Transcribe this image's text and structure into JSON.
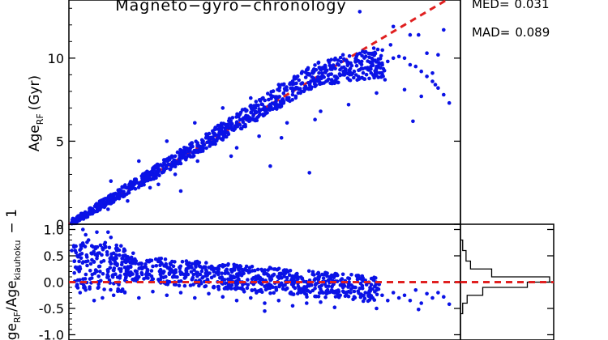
{
  "chart_data": [
    {
      "type": "scatter",
      "panel": "main",
      "title": "Magneto−gyro−chronology",
      "ylabel": "Age",
      "ylabel_sub": "RF",
      "ylabel_unit": "(Gyr)",
      "xlim": [
        0,
        14
      ],
      "ylim": [
        0,
        13.5
      ],
      "yticks": [
        0,
        5,
        10
      ],
      "yticklabels": [
        "0",
        "5",
        "10"
      ],
      "point_color": "#0a12e6",
      "reference_line": {
        "style": "dashed",
        "color": "#e02020",
        "slope": 1,
        "intercept": 0
      },
      "series": [
        {
          "points": [
            [
              0.2,
              0.3
            ],
            [
              0.4,
              0.5
            ],
            [
              0.6,
              0.7
            ],
            [
              0.8,
              0.9
            ],
            [
              1.0,
              1.0
            ],
            [
              1.2,
              1.4
            ],
            [
              1.4,
              1.6
            ],
            [
              1.6,
              1.8
            ],
            [
              1.8,
              2.0
            ],
            [
              2.0,
              2.3
            ],
            [
              2.2,
              2.5
            ],
            [
              2.4,
              2.7
            ],
            [
              2.6,
              2.9
            ],
            [
              2.8,
              3.1
            ],
            [
              3.0,
              3.3
            ],
            [
              3.2,
              3.5
            ],
            [
              3.4,
              3.7
            ],
            [
              3.6,
              3.9
            ],
            [
              3.8,
              4.1
            ],
            [
              4.0,
              4.3
            ],
            [
              4.2,
              4.5
            ],
            [
              4.4,
              4.7
            ],
            [
              4.6,
              4.9
            ],
            [
              4.8,
              5.0
            ],
            [
              5.0,
              5.2
            ],
            [
              5.2,
              5.4
            ],
            [
              5.4,
              5.6
            ],
            [
              5.6,
              5.8
            ],
            [
              5.8,
              6.0
            ],
            [
              6.0,
              6.1
            ],
            [
              6.2,
              6.3
            ],
            [
              6.4,
              6.5
            ],
            [
              6.6,
              6.6
            ],
            [
              6.8,
              6.8
            ],
            [
              7.0,
              7.0
            ],
            [
              7.2,
              7.1
            ],
            [
              7.4,
              7.3
            ],
            [
              7.6,
              7.4
            ],
            [
              7.8,
              7.6
            ],
            [
              8.0,
              7.8
            ],
            [
              8.2,
              7.9
            ],
            [
              8.4,
              8.0
            ],
            [
              8.6,
              8.2
            ],
            [
              8.8,
              8.3
            ],
            [
              9.0,
              8.5
            ],
            [
              9.2,
              8.6
            ],
            [
              9.4,
              8.7
            ],
            [
              9.6,
              8.8
            ],
            [
              9.8,
              9.0
            ],
            [
              10.0,
              9.1
            ],
            [
              10.2,
              9.2
            ],
            [
              10.4,
              9.3
            ],
            [
              10.6,
              9.4
            ],
            [
              10.8,
              9.5
            ],
            [
              11.0,
              9.5
            ],
            [
              11.2,
              9.7
            ],
            [
              11.4,
              9.8
            ],
            [
              11.6,
              10.0
            ],
            [
              11.8,
              10.1
            ],
            [
              12.0,
              10.0
            ],
            [
              12.2,
              9.6
            ],
            [
              12.4,
              9.5
            ],
            [
              12.6,
              9.2
            ],
            [
              12.8,
              8.9
            ],
            [
              13.0,
              8.6
            ],
            [
              13.2,
              8.2
            ],
            [
              13.4,
              7.8
            ],
            [
              13.6,
              7.3
            ],
            [
              1.5,
              2.6
            ],
            [
              2.5,
              3.8
            ],
            [
              3.5,
              5.0
            ],
            [
              4.5,
              6.1
            ],
            [
              5.5,
              7.0
            ],
            [
              6.5,
              7.6
            ],
            [
              7.5,
              8.4
            ],
            [
              8.5,
              9.3
            ],
            [
              9.5,
              9.9
            ],
            [
              10.5,
              10.4
            ],
            [
              11.5,
              10.8
            ],
            [
              12.5,
              11.4
            ],
            [
              10.4,
              12.8
            ],
            [
              11.6,
              11.9
            ],
            [
              12.2,
              11.4
            ],
            [
              13.4,
              11.7
            ],
            [
              9.8,
              10.2
            ],
            [
              10.9,
              10.6
            ],
            [
              12.8,
              10.3
            ],
            [
              13.2,
              10.2
            ],
            [
              7.2,
              3.5
            ],
            [
              8.6,
              3.1
            ],
            [
              7.6,
              5.2
            ],
            [
              4.0,
              2.0
            ],
            [
              6.0,
              4.6
            ],
            [
              9.0,
              6.8
            ],
            [
              10.0,
              7.2
            ],
            [
              11.0,
              7.9
            ],
            [
              12.0,
              8.1
            ],
            [
              13.0,
              9.1
            ],
            [
              11.3,
              8.7
            ],
            [
              12.6,
              7.7
            ],
            [
              12.3,
              6.2
            ],
            [
              13.1,
              8.4
            ],
            [
              8.8,
              6.3
            ],
            [
              3.2,
              2.4
            ],
            [
              2.1,
              1.4
            ],
            [
              1.4,
              0.9
            ],
            [
              5.8,
              4.1
            ],
            [
              6.8,
              5.3
            ],
            [
              7.8,
              6.1
            ],
            [
              4.6,
              3.8
            ],
            [
              3.8,
              3.0
            ],
            [
              2.9,
              2.2
            ]
          ]
        }
      ]
    },
    {
      "type": "scatter",
      "panel": "residual",
      "ylabel": "Age",
      "ylabel_sub1": "RF",
      "ylabel_mid": "/Age",
      "ylabel_sub2": "kiauhoku",
      "ylabel_tail": "− 1",
      "ylim": [
        -1.1,
        1.1
      ],
      "yticks": [
        -1.0,
        -0.5,
        0.0,
        0.5,
        1.0
      ],
      "yticklabels": [
        "-1.0",
        "-0.5",
        "0.0",
        "0.5",
        "1.0"
      ],
      "point_color": "#0a12e6",
      "reference_line": {
        "style": "dashed",
        "color": "#e02020",
        "y": 0
      },
      "series": [
        {
          "points": [
            [
              0.1,
              0.6
            ],
            [
              0.2,
              0.4
            ],
            [
              0.3,
              0.25
            ],
            [
              0.3,
              0.5
            ],
            [
              0.5,
              0.7
            ],
            [
              0.6,
              0.9
            ],
            [
              0.5,
              1.0
            ],
            [
              0.7,
              0.8
            ],
            [
              0.8,
              0.55
            ],
            [
              1.0,
              0.45
            ],
            [
              1.1,
              0.3
            ],
            [
              1.2,
              0.65
            ],
            [
              1.3,
              0.75
            ],
            [
              1.4,
              0.2
            ],
            [
              1.5,
              0.35
            ],
            [
              1.6,
              0.55
            ],
            [
              1.8,
              0.25
            ],
            [
              1.9,
              0.45
            ],
            [
              2.0,
              0.15
            ],
            [
              2.2,
              0.3
            ],
            [
              2.4,
              0.4
            ],
            [
              2.5,
              0.1
            ],
            [
              2.6,
              0.35
            ],
            [
              2.8,
              0.2
            ],
            [
              3.0,
              0.3
            ],
            [
              3.2,
              0.05
            ],
            [
              3.4,
              0.2
            ],
            [
              3.6,
              0.25
            ],
            [
              3.8,
              0.1
            ],
            [
              4.0,
              0.15
            ],
            [
              4.2,
              0.25
            ],
            [
              4.4,
              0.05
            ],
            [
              4.6,
              0.18
            ],
            [
              4.8,
              0.1
            ],
            [
              5.0,
              0.0
            ],
            [
              5.2,
              0.12
            ],
            [
              5.4,
              0.08
            ],
            [
              5.6,
              -0.02
            ],
            [
              5.8,
              0.05
            ],
            [
              6.0,
              0.1
            ],
            [
              6.2,
              0.0
            ],
            [
              6.4,
              -0.05
            ],
            [
              6.6,
              0.08
            ],
            [
              6.8,
              0.0
            ],
            [
              7.0,
              -0.08
            ],
            [
              7.2,
              0.05
            ],
            [
              7.4,
              -0.1
            ],
            [
              7.6,
              -0.02
            ],
            [
              7.8,
              -0.12
            ],
            [
              8.0,
              0.0
            ],
            [
              8.2,
              -0.08
            ],
            [
              8.4,
              -0.15
            ],
            [
              8.6,
              -0.05
            ],
            [
              8.8,
              -0.12
            ],
            [
              9.0,
              -0.2
            ],
            [
              9.2,
              -0.08
            ],
            [
              9.4,
              -0.15
            ],
            [
              9.6,
              -0.22
            ],
            [
              9.8,
              -0.1
            ],
            [
              10.0,
              -0.18
            ],
            [
              10.2,
              -0.28
            ],
            [
              10.4,
              -0.12
            ],
            [
              10.6,
              -0.2
            ],
            [
              10.8,
              -0.3
            ],
            [
              11.0,
              -0.15
            ],
            [
              11.2,
              -0.25
            ],
            [
              11.4,
              -0.35
            ],
            [
              11.6,
              -0.2
            ],
            [
              11.8,
              -0.3
            ],
            [
              12.0,
              -0.25
            ],
            [
              12.2,
              -0.35
            ],
            [
              12.4,
              -0.15
            ],
            [
              12.6,
              -0.4
            ],
            [
              12.8,
              -0.22
            ],
            [
              13.0,
              -0.3
            ],
            [
              13.2,
              -0.2
            ],
            [
              13.4,
              -0.28
            ],
            [
              13.6,
              -0.42
            ],
            [
              0.4,
              -0.2
            ],
            [
              0.6,
              -0.15
            ],
            [
              0.9,
              -0.35
            ],
            [
              1.2,
              -0.3
            ],
            [
              1.6,
              -0.25
            ],
            [
              2.0,
              -0.2
            ],
            [
              2.5,
              -0.3
            ],
            [
              3.0,
              -0.18
            ],
            [
              3.5,
              -0.25
            ],
            [
              4.0,
              -0.2
            ],
            [
              4.5,
              -0.3
            ],
            [
              5.0,
              -0.22
            ],
            [
              5.5,
              -0.28
            ],
            [
              6.0,
              -0.35
            ],
            [
              6.5,
              -0.3
            ],
            [
              7.0,
              -0.4
            ],
            [
              7.5,
              -0.35
            ],
            [
              8.0,
              -0.45
            ],
            [
              8.5,
              -0.4
            ],
            [
              9.0,
              -0.38
            ],
            [
              7.0,
              -0.55
            ],
            [
              9.5,
              -0.48
            ],
            [
              11.0,
              -0.5
            ],
            [
              12.5,
              -0.52
            ],
            [
              1.0,
              0.95
            ],
            [
              1.5,
              0.85
            ],
            [
              2.0,
              0.6
            ],
            [
              2.3,
              0.55
            ],
            [
              1.4,
              0.95
            ],
            [
              1.7,
              0.7
            ],
            [
              3.3,
              0.45
            ],
            [
              4.2,
              0.4
            ],
            [
              5.1,
              0.3
            ],
            [
              6.3,
              0.25
            ]
          ]
        }
      ]
    },
    {
      "type": "text",
      "panel": "stats",
      "stats": [
        {
          "label": "MED=",
          "value": "0.031"
        },
        {
          "label": "MAD=",
          "value": "0.089"
        }
      ]
    },
    {
      "type": "histogram",
      "panel": "residual-hist",
      "orientation": "horizontal",
      "ylim": [
        -1.1,
        1.1
      ],
      "bins": [
        {
          "y0": 0.6,
          "y1": 0.8,
          "count": 2
        },
        {
          "y0": 0.4,
          "y1": 0.6,
          "count": 5
        },
        {
          "y0": 0.25,
          "y1": 0.4,
          "count": 9
        },
        {
          "y0": 0.1,
          "y1": 0.25,
          "count": 28
        },
        {
          "y0": 0.0,
          "y1": 0.1,
          "count": 80
        },
        {
          "y0": -0.1,
          "y1": 0.0,
          "count": 60
        },
        {
          "y0": -0.25,
          "y1": -0.1,
          "count": 20
        },
        {
          "y0": -0.4,
          "y1": -0.25,
          "count": 6
        },
        {
          "y0": -0.6,
          "y1": -0.4,
          "count": 2
        }
      ]
    }
  ]
}
